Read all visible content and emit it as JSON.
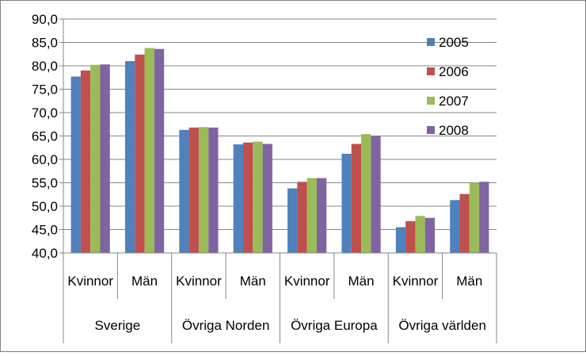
{
  "chart_data": {
    "type": "bar",
    "categories": [
      "Kvinnor",
      "Män",
      "Kvinnor",
      "Män",
      "Kvinnor",
      "Män",
      "Kvinnor",
      "Män"
    ],
    "groups": [
      "Sverige",
      "Övriga Norden",
      "Övriga Europa",
      "Övriga världen"
    ],
    "series": [
      {
        "name": "2005",
        "color": "#4F81BD",
        "values": [
          77.7,
          81.0,
          66.3,
          63.2,
          53.8,
          61.2,
          45.5,
          51.3
        ]
      },
      {
        "name": "2006",
        "color": "#C0504D",
        "values": [
          79.0,
          82.4,
          66.8,
          63.6,
          55.2,
          63.3,
          46.8,
          52.6
        ]
      },
      {
        "name": "2007",
        "color": "#9BBB59",
        "values": [
          80.2,
          83.8,
          66.9,
          63.8,
          56.0,
          65.4,
          47.9,
          55.0
        ]
      },
      {
        "name": "2008",
        "color": "#8064A2",
        "values": [
          80.3,
          83.6,
          66.8,
          63.3,
          56.0,
          65.0,
          47.5,
          55.2
        ]
      }
    ],
    "ylim": [
      40,
      90
    ],
    "yticks": [
      "40,0",
      "45,0",
      "50,0",
      "55,0",
      "60,0",
      "65,0",
      "70,0",
      "75,0",
      "80,0",
      "85,0",
      "90,0"
    ],
    "grid": true,
    "legend_position": "right"
  }
}
